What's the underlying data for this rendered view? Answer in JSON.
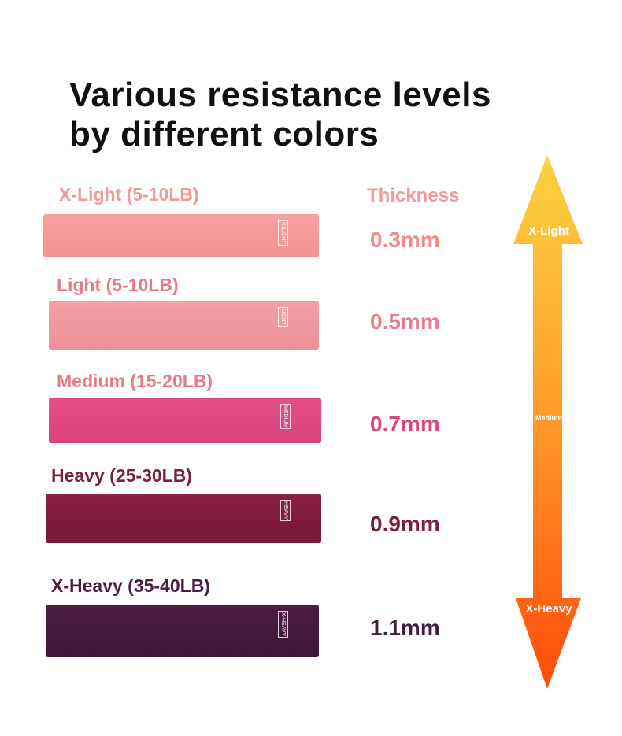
{
  "header": {
    "title_lines": [
      "Various resistance levels",
      "by different colors"
    ]
  },
  "thickness_header": "Thickness",
  "bands": [
    {
      "label": "X-Light (5-10LB)",
      "tag": "X-LIGHT",
      "thickness": "0.3mm"
    },
    {
      "label": "Light (5-10LB)",
      "tag": "LIGHT",
      "thickness": "0.5mm"
    },
    {
      "label": "Medium (15-20LB)",
      "tag": "MEDIUM",
      "thickness": "0.7mm"
    },
    {
      "label": "Heavy (25-30LB)",
      "tag": "HEAVY",
      "thickness": "0.9mm"
    },
    {
      "label": "X-Heavy (35-40LB)",
      "tag": "X-HEAVY",
      "thickness": "1.1mm"
    }
  ],
  "arrow": {
    "top_label": "X-Light",
    "middle_label": "Medium",
    "bottom_label": "X-Heavy"
  }
}
